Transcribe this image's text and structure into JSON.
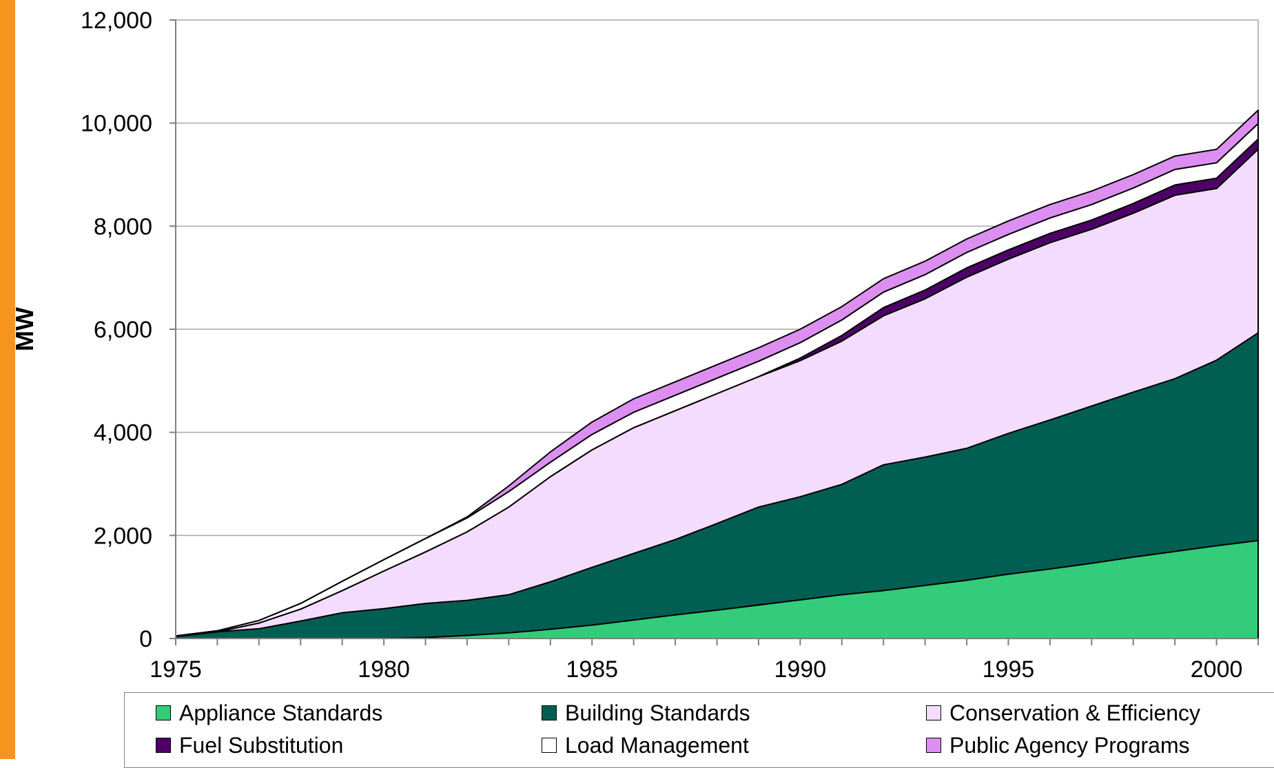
{
  "chart_data": {
    "type": "area",
    "stacked": true,
    "title": "",
    "xlabel": "",
    "ylabel": "MW",
    "xlim": [
      1975,
      2001
    ],
    "ylim": [
      0,
      12000
    ],
    "x_ticks": [
      1975,
      1980,
      1985,
      1990,
      1995,
      2000
    ],
    "y_ticks": [
      0,
      2000,
      4000,
      6000,
      8000,
      10000,
      12000
    ],
    "x_tick_labels": [
      "1975",
      "1980",
      "1985",
      "1990",
      "1995",
      "2000"
    ],
    "y_tick_labels": [
      "0",
      "2,000",
      "4,000",
      "6,000",
      "8,000",
      "10,000",
      "12,000"
    ],
    "grid": "horizontal",
    "legend_position": "bottom",
    "x": [
      1975,
      1976,
      1977,
      1978,
      1979,
      1980,
      1981,
      1982,
      1983,
      1984,
      1985,
      1986,
      1987,
      1988,
      1989,
      1990,
      1991,
      1992,
      1993,
      1994,
      1995,
      1996,
      1997,
      1998,
      1999,
      2000,
      2001
    ],
    "series": [
      {
        "name": "Appliance Standards",
        "color": "#33cc7a",
        "values": [
          0,
          0,
          0,
          0,
          0,
          0,
          20,
          60,
          110,
          180,
          260,
          360,
          460,
          550,
          650,
          750,
          850,
          930,
          1030,
          1130,
          1250,
          1350,
          1460,
          1580,
          1690,
          1800,
          1900
        ]
      },
      {
        "name": "Building Standards",
        "color": "#005f52",
        "values": [
          40,
          130,
          190,
          340,
          500,
          580,
          660,
          680,
          740,
          920,
          1120,
          1290,
          1460,
          1680,
          1900,
          2000,
          2140,
          2440,
          2490,
          2560,
          2730,
          2890,
          3050,
          3200,
          3350,
          3600,
          4030
        ]
      },
      {
        "name": "Conservation & Efficiency",
        "color": "#f3dcff",
        "values": [
          0,
          0,
          110,
          230,
          430,
          730,
          1000,
          1330,
          1700,
          2040,
          2280,
          2440,
          2500,
          2520,
          2530,
          2640,
          2780,
          2890,
          3070,
          3320,
          3380,
          3440,
          3430,
          3470,
          3560,
          3330,
          3560
        ]
      },
      {
        "name": "Fuel Substitution",
        "color": "#4d0066",
        "values": [
          0,
          0,
          0,
          0,
          0,
          0,
          0,
          0,
          0,
          0,
          0,
          0,
          0,
          0,
          0,
          50,
          110,
          160,
          170,
          180,
          180,
          180,
          180,
          190,
          200,
          200,
          200
        ]
      },
      {
        "name": "Load Management",
        "color": "#ffffff",
        "values": [
          10,
          20,
          50,
          110,
          180,
          220,
          260,
          270,
          300,
          280,
          300,
          300,
          300,
          300,
          300,
          300,
          300,
          300,
          300,
          300,
          300,
          300,
          300,
          300,
          300,
          300,
          300
        ]
      },
      {
        "name": "Public Agency Programs",
        "color": "#dc8ff0",
        "values": [
          0,
          0,
          0,
          0,
          0,
          0,
          0,
          20,
          110,
          200,
          240,
          260,
          260,
          260,
          260,
          260,
          260,
          260,
          260,
          260,
          260,
          260,
          260,
          260,
          260,
          260,
          260
        ]
      }
    ]
  }
}
